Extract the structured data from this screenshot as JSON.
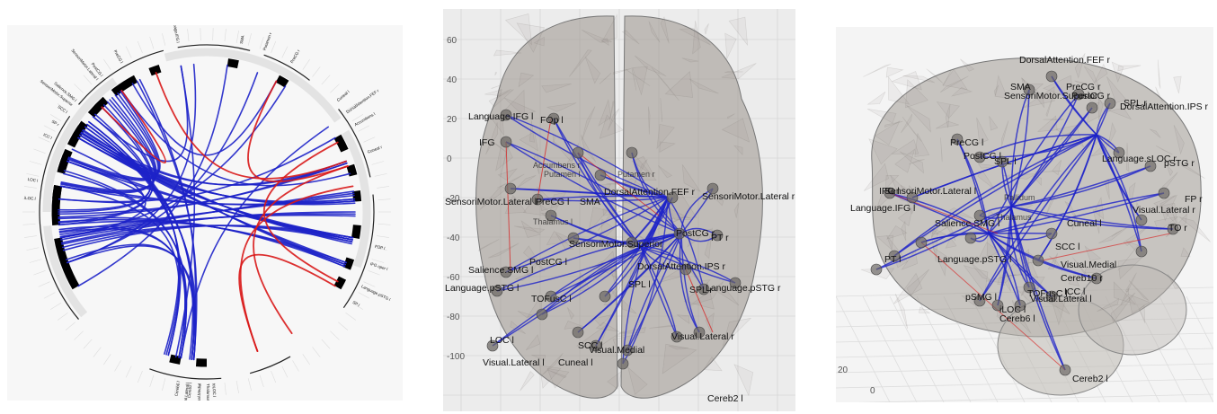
{
  "panel1": {
    "labels": [
      "FOP l",
      "IFG oper l",
      "Language.pSTG l",
      "SP l",
      "SP r",
      "Cuneal l",
      "Cuneal r",
      "Language.IFG l",
      "Salience.SMG l",
      "Accumbens l",
      "DorsalAttention.FEF r",
      "SensoriMotor.Superior",
      "SensoriMotor.Lateral l",
      "LOC l",
      "SCC l",
      "ICC l",
      "PostCG l",
      "PreCG l",
      "PreCG r",
      "SMA",
      "Putamen r",
      "Thalamus r",
      "toLOC l",
      "Visual.Medial",
      "Visual.Lateral l",
      "iLOC l",
      "Cereb2 l",
      "Cereb6 l"
    ]
  },
  "panel2": {
    "y_ticks": [
      "60",
      "40",
      "20",
      "0",
      "-20",
      "-40",
      "-60",
      "-80",
      "-100"
    ],
    "labels": [
      {
        "text": "Language.IFG l",
        "size": "lg"
      },
      {
        "text": "FOp l",
        "size": "lg"
      },
      {
        "text": "IFG",
        "size": "lg"
      },
      {
        "text": "Accumbens r",
        "size": "sm"
      },
      {
        "text": "Putamen l",
        "size": "sm"
      },
      {
        "text": "Putamen r",
        "size": "sm"
      },
      {
        "text": "SMA",
        "size": "lg"
      },
      {
        "text": "DorsalAttention.FEF r",
        "size": "lg"
      },
      {
        "text": "SensoriMotor.Lateral r",
        "size": "lg"
      },
      {
        "text": "SensoriMotor.Lateral l",
        "size": "lg"
      },
      {
        "text": "PreCG l",
        "size": "lg"
      },
      {
        "text": "Thalamus l",
        "size": "sm"
      },
      {
        "text": "PostCG l",
        "size": "lg"
      },
      {
        "text": "SensoriMotor.Superior",
        "size": "lg"
      },
      {
        "text": "PostCG r",
        "size": "lg"
      },
      {
        "text": "PT r",
        "size": "lg"
      },
      {
        "text": "Salience.SMG l",
        "size": "lg"
      },
      {
        "text": "DorsalAttention.IPS r",
        "size": "lg"
      },
      {
        "text": "Language.pSTG l",
        "size": "lg"
      },
      {
        "text": "Language.pSTG r",
        "size": "lg"
      },
      {
        "text": "SPL l",
        "size": "lg"
      },
      {
        "text": "SPL r",
        "size": "lg"
      },
      {
        "text": "TOFusC l",
        "size": "lg"
      },
      {
        "text": "LOC l",
        "size": "lg"
      },
      {
        "text": "Visual.Lateral l",
        "size": "lg"
      },
      {
        "text": "Cuneal l",
        "size": "lg"
      },
      {
        "text": "Visual.Medial",
        "size": "lg"
      },
      {
        "text": "SCC l",
        "size": "lg"
      },
      {
        "text": "Visual.Lateral r",
        "size": "lg"
      },
      {
        "text": "Cereb2 l",
        "size": "lg"
      }
    ]
  },
  "panel3": {
    "axis_ticks": [
      "20",
      "0"
    ],
    "labels": [
      {
        "text": "DorsalAttention.FEF r",
        "size": "lg"
      },
      {
        "text": "SMA",
        "size": "lg"
      },
      {
        "text": "SensoriMotor.Superior",
        "size": "lg"
      },
      {
        "text": "PreCG r",
        "size": "lg"
      },
      {
        "text": "PostCG r",
        "size": "lg"
      },
      {
        "text": "DorsalAttention.IPS r",
        "size": "lg"
      },
      {
        "text": "SPL r",
        "size": "lg"
      },
      {
        "text": "PreCG l",
        "size": "lg"
      },
      {
        "text": "PostCG l",
        "size": "lg"
      },
      {
        "text": "SPL l",
        "size": "lg"
      },
      {
        "text": "IFG l",
        "size": "lg"
      },
      {
        "text": "SensoriMotor.Lateral l",
        "size": "lg"
      },
      {
        "text": "Language.IFG l",
        "size": "lg"
      },
      {
        "text": "Pallidum",
        "size": "sm"
      },
      {
        "text": "Thalamus",
        "size": "sm"
      },
      {
        "text": "Salience.SMG l",
        "size": "lg"
      },
      {
        "text": "PT l",
        "size": "lg"
      },
      {
        "text": "Language.pSTG l",
        "size": "lg"
      },
      {
        "text": "pSMG l",
        "size": "lg"
      },
      {
        "text": "Cuneal l",
        "size": "lg"
      },
      {
        "text": "SCC l",
        "size": "lg"
      },
      {
        "text": "Visual.Medial",
        "size": "lg"
      },
      {
        "text": "ICC l",
        "size": "lg"
      },
      {
        "text": "Visual.Lateral l",
        "size": "lg"
      },
      {
        "text": "TOFusC l",
        "size": "lg"
      },
      {
        "text": "iLOC l",
        "size": "lg"
      },
      {
        "text": "Cereb6 l",
        "size": "lg"
      },
      {
        "text": "Cereb10 r",
        "size": "lg"
      },
      {
        "text": "Cereb2 l",
        "size": "lg"
      },
      {
        "text": "Visual.Lateral r",
        "size": "lg"
      },
      {
        "text": "Language.sLOC r",
        "size": "lg"
      },
      {
        "text": "pSTG r",
        "size": "lg"
      },
      {
        "text": "FP r",
        "size": "lg"
      },
      {
        "text": "TO r",
        "size": "lg"
      }
    ]
  },
  "colors": {
    "negative_link": "#1d22c8",
    "positive_link": "#d81818",
    "brain_fill": "#9a948c",
    "ring_black": "#000000",
    "ring_grey": "#e3e3e3"
  }
}
